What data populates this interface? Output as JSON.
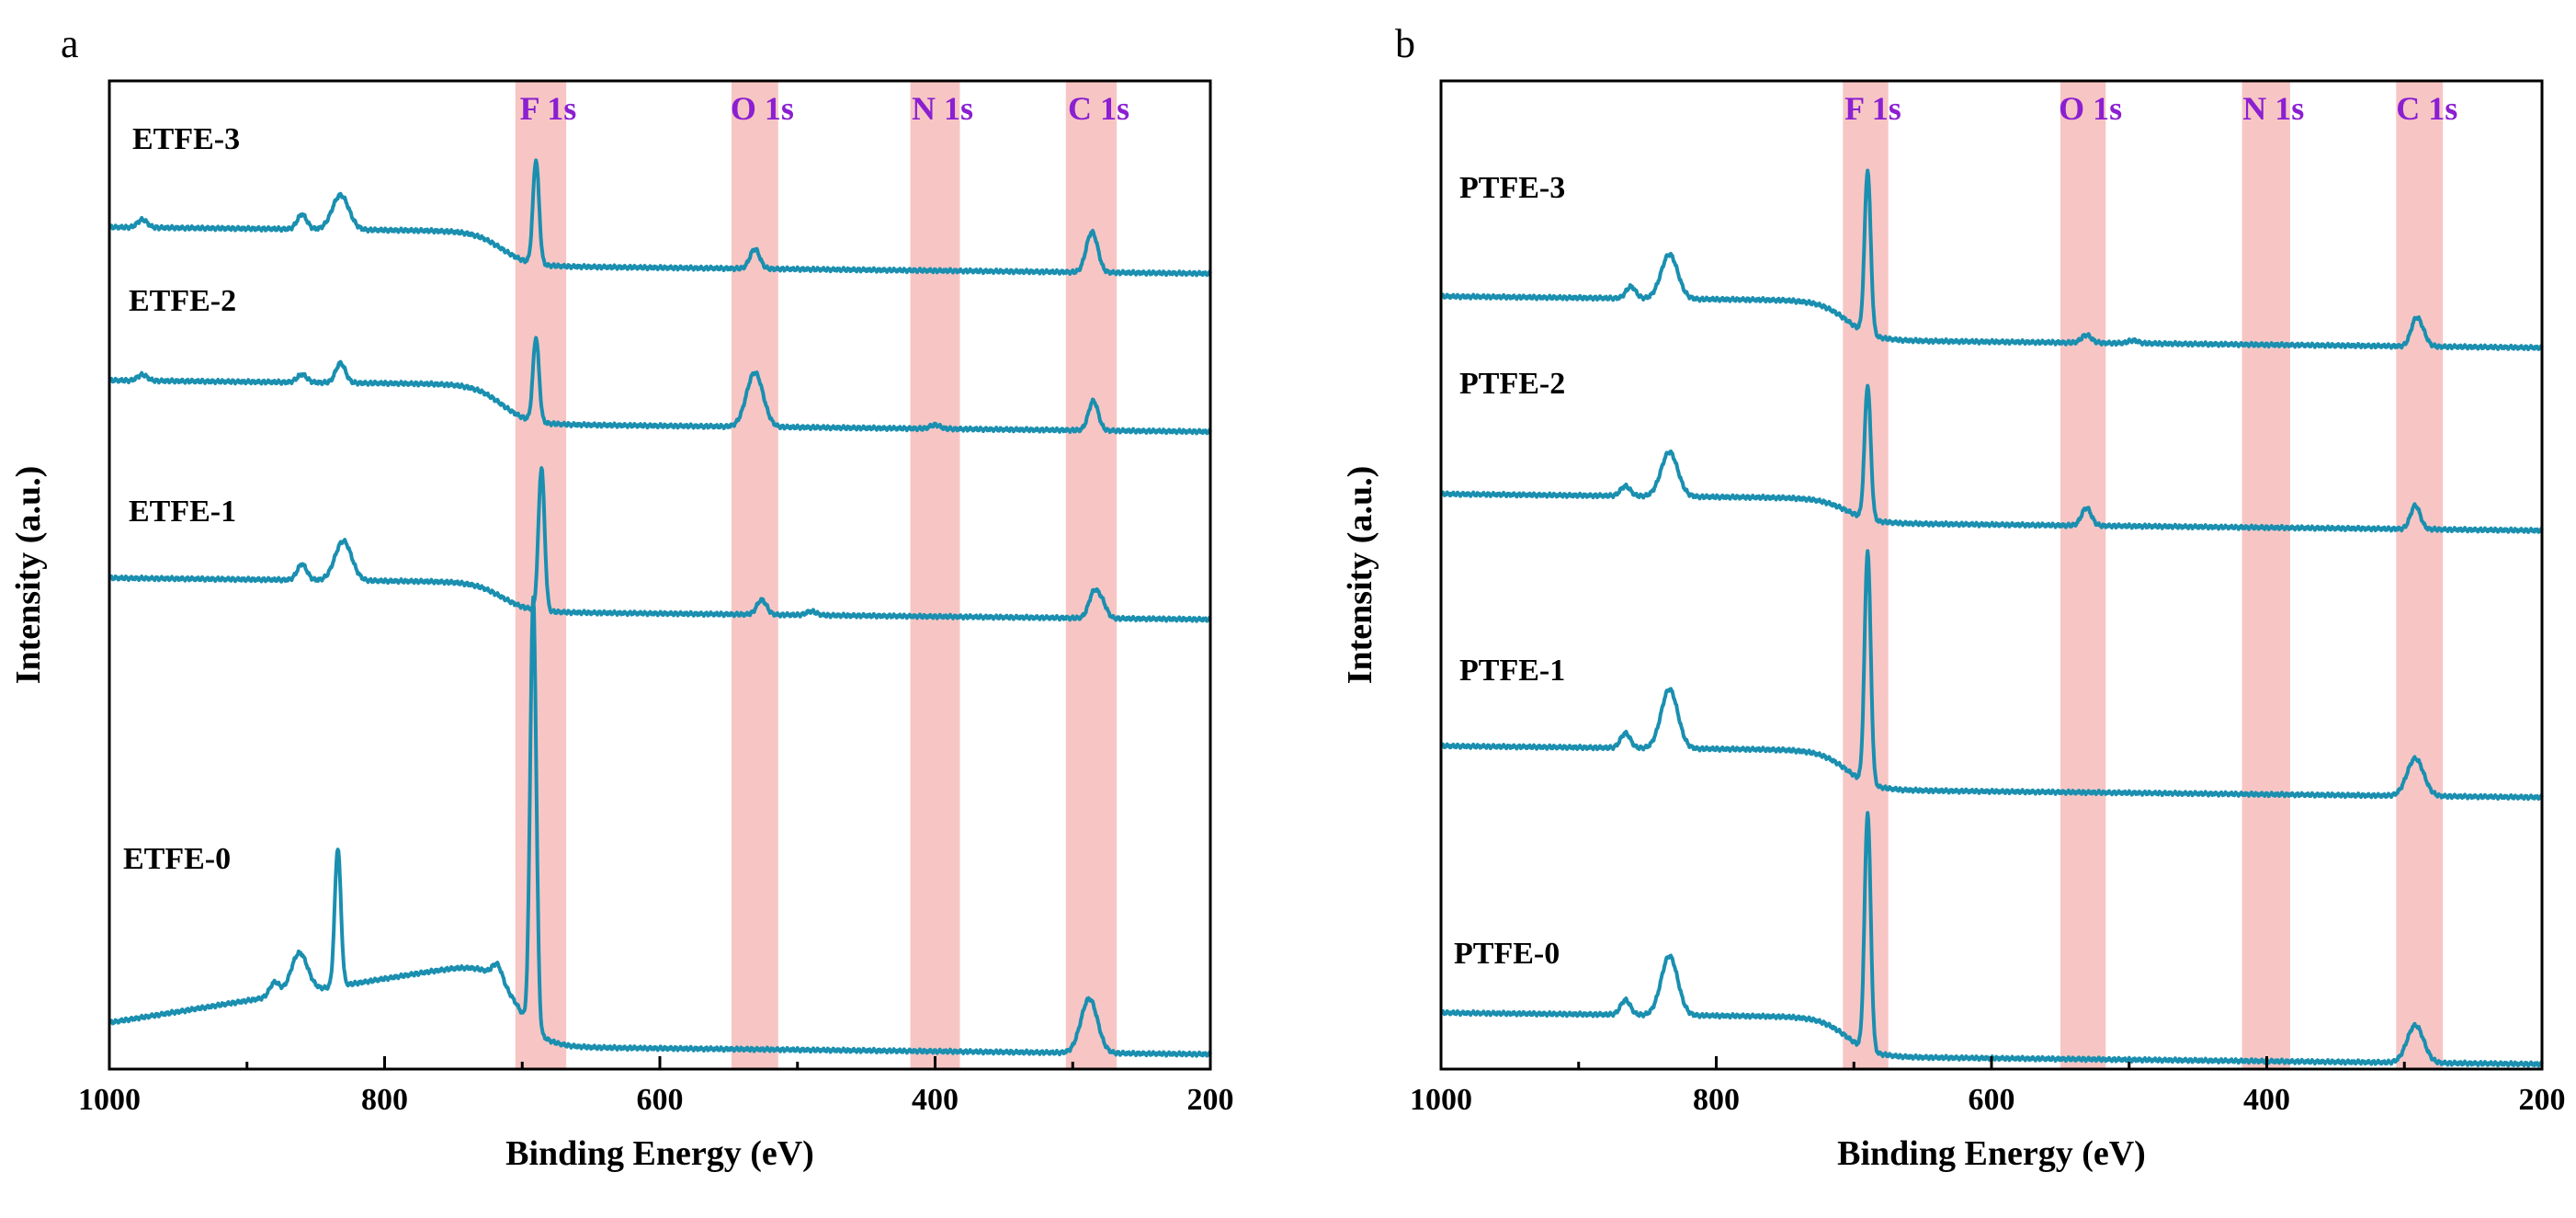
{
  "chart_data": [
    {
      "type": "line",
      "panel": "a",
      "xlabel": "Binding Energy (eV)",
      "ylabel": "Intensity (a.u.)",
      "xlim": [
        1000,
        200
      ],
      "x_reversed": true,
      "xticks": [
        1000,
        800,
        600,
        400,
        200
      ],
      "yticks_visible": false,
      "ylim": [
        0,
        100
      ],
      "grid": false,
      "bands": [
        {
          "label": "F 1s",
          "range": [
            705,
            668
          ]
        },
        {
          "label": "O 1s",
          "range": [
            548,
            514
          ]
        },
        {
          "label": "N 1s",
          "range": [
            418,
            382
          ]
        },
        {
          "label": "C 1s",
          "range": [
            305,
            268
          ]
        }
      ],
      "series": [
        {
          "name": "ETFE-3",
          "color": "#1a8fb0",
          "baseline_high": 84,
          "baseline_low": 80.5,
          "drop_at": 715,
          "peaks": [
            {
              "x": 976,
              "h": 0.8
            },
            {
              "x": 860,
              "h": 1.5
            },
            {
              "x": 832,
              "h": 3.5
            },
            {
              "x": 690,
              "h": 10.5
            },
            {
              "x": 531,
              "h": 2.0
            },
            {
              "x": 288,
              "h": 2.4
            },
            {
              "x": 284,
              "h": 2.4
            }
          ]
        },
        {
          "name": "ETFE-2",
          "color": "#1a8fb0",
          "baseline_high": 68.5,
          "baseline_low": 64.5,
          "drop_at": 715,
          "peaks": [
            {
              "x": 976,
              "h": 0.6
            },
            {
              "x": 860,
              "h": 0.8
            },
            {
              "x": 832,
              "h": 2.0
            },
            {
              "x": 690,
              "h": 8.5
            },
            {
              "x": 531,
              "h": 5.5
            },
            {
              "x": 400,
              "h": 0.4
            },
            {
              "x": 285,
              "h": 3.0
            }
          ]
        },
        {
          "name": "ETFE-1",
          "color": "#1a8fb0",
          "baseline_high": 48.5,
          "baseline_low": 45.5,
          "drop_at": 715,
          "peaks": [
            {
              "x": 860,
              "h": 1.6
            },
            {
              "x": 830,
              "h": 4.0
            },
            {
              "x": 686,
              "h": 14.5
            },
            {
              "x": 526,
              "h": 1.5
            },
            {
              "x": 490,
              "h": 0.4
            },
            {
              "x": 285,
              "h": 2.4
            },
            {
              "x": 279,
              "h": 1.6
            }
          ]
        },
        {
          "name": "ETFE-0",
          "color": "#1a8fb0",
          "baseline_high": 10.5,
          "baseline_low": 1.5,
          "drop_at": 705,
          "slope_start": 7.0,
          "peaks": [
            {
              "x": 880,
              "h": 1.4
            },
            {
              "x": 862,
              "h": 4.0
            },
            {
              "x": 834,
              "h": 14.0
            },
            {
              "x": 718,
              "h": 1.5
            },
            {
              "x": 692,
              "h": 43.5
            },
            {
              "x": 288,
              "h": 5.5
            }
          ]
        }
      ],
      "series_labels": [
        "ETFE-3",
        "ETFE-2",
        "ETFE-1",
        "ETFE-0"
      ]
    },
    {
      "type": "line",
      "panel": "b",
      "xlabel": "Binding Energy (eV)",
      "ylabel": "Intensity (a.u.)",
      "xlim": [
        1000,
        200
      ],
      "x_reversed": true,
      "xticks": [
        1000,
        800,
        600,
        400,
        200
      ],
      "yticks_visible": false,
      "ylim": [
        0,
        100
      ],
      "grid": false,
      "bands": [
        {
          "label": "F 1s",
          "range": [
            708,
            675
          ]
        },
        {
          "label": "O 1s",
          "range": [
            550,
            517
          ]
        },
        {
          "label": "N 1s",
          "range": [
            418,
            383
          ]
        },
        {
          "label": "C 1s",
          "range": [
            306,
            272
          ]
        }
      ],
      "series": [
        {
          "name": "PTFE-3",
          "color": "#1a8fb0",
          "baseline_high": 77,
          "baseline_low": 73,
          "drop_at": 705,
          "peaks": [
            {
              "x": 862,
              "h": 1.2
            },
            {
              "x": 834,
              "h": 4.5
            },
            {
              "x": 690,
              "h": 16.5
            },
            {
              "x": 531,
              "h": 0.8
            },
            {
              "x": 497,
              "h": 0.3
            },
            {
              "x": 292,
              "h": 2.4
            },
            {
              "x": 287,
              "h": 1.2
            }
          ]
        },
        {
          "name": "PTFE-2",
          "color": "#1a8fb0",
          "baseline_high": 57,
          "baseline_low": 54.5,
          "drop_at": 705,
          "peaks": [
            {
              "x": 866,
              "h": 1.0
            },
            {
              "x": 834,
              "h": 4.5
            },
            {
              "x": 690,
              "h": 13.5
            },
            {
              "x": 531,
              "h": 1.8
            },
            {
              "x": 292,
              "h": 2.4
            }
          ]
        },
        {
          "name": "PTFE-1",
          "color": "#1a8fb0",
          "baseline_high": 31.5,
          "baseline_low": 27.5,
          "drop_at": 705,
          "peaks": [
            {
              "x": 866,
              "h": 1.5
            },
            {
              "x": 834,
              "h": 6.0
            },
            {
              "x": 690,
              "h": 23.5
            },
            {
              "x": 292,
              "h": 3.8
            }
          ]
        },
        {
          "name": "PTFE-0",
          "color": "#1a8fb0",
          "baseline_high": 4.5,
          "baseline_low": 0.5,
          "drop_at": 705,
          "peaks": [
            {
              "x": 866,
              "h": 1.5
            },
            {
              "x": 834,
              "h": 6.0
            },
            {
              "x": 690,
              "h": 24.0
            },
            {
              "x": 292,
              "h": 3.8
            }
          ]
        }
      ],
      "series_labels": [
        "PTFE-3",
        "PTFE-2",
        "PTFE-1",
        "PTFE-0"
      ]
    }
  ],
  "panel_letters": [
    "a",
    "b"
  ],
  "colors": {
    "line": "#1a8fb0",
    "band": "#f7c6c4",
    "band_text": "#8b1fd1"
  }
}
